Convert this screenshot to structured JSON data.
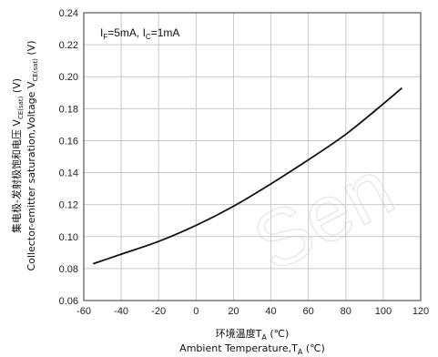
{
  "chart_data": {
    "type": "line",
    "title": "",
    "annotation": {
      "prefix_i_f": "I",
      "sub_f": "F",
      "mid": "=5mA, I",
      "sub_c": "C",
      "suffix": "=1mA"
    },
    "xlabel": {
      "cn_text": "环境温度T",
      "cn_sub": "A",
      "cn_unit": " (℃)",
      "en_text": "Ambient Temperature,T",
      "en_sub": "A",
      "en_unit": " (℃)"
    },
    "ylabel": {
      "cn_text": "集电极-发射极饱和电压 V",
      "cn_sub": "CE(sat)",
      "cn_unit": " (V)",
      "en_text": "Collector-emitter saturation,Voltage V",
      "en_sub": "CE(sat)",
      "en_unit": " (V)"
    },
    "xlim": [
      -60,
      120
    ],
    "ylim": [
      0.06,
      0.24
    ],
    "xticks": [
      -60,
      -40,
      -20,
      0,
      20,
      40,
      60,
      80,
      100,
      120
    ],
    "xtick_labels": [
      "-60",
      "-40",
      "-20",
      "0",
      "20",
      "40",
      "60",
      "80",
      "100",
      "120"
    ],
    "yticks": [
      0.06,
      0.08,
      0.1,
      0.12,
      0.14,
      0.16,
      0.18,
      0.2,
      0.22,
      0.24
    ],
    "ytick_labels": [
      "0.06",
      "0.08",
      "0.10",
      "0.12",
      "0.14",
      "0.16",
      "0.18",
      "0.20",
      "0.22",
      "0.24"
    ],
    "grid": true,
    "series": [
      {
        "x": [
          -55,
          -40,
          -20,
          0,
          20,
          40,
          60,
          80,
          100,
          110
        ],
        "y": [
          0.083,
          0.089,
          0.097,
          0.107,
          0.119,
          0.133,
          0.148,
          0.164,
          0.183,
          0.193
        ]
      }
    ],
    "colors": {
      "line": "#111111",
      "grid": "#c9c9c9",
      "frame": "#555555"
    },
    "watermark": "Sen"
  }
}
